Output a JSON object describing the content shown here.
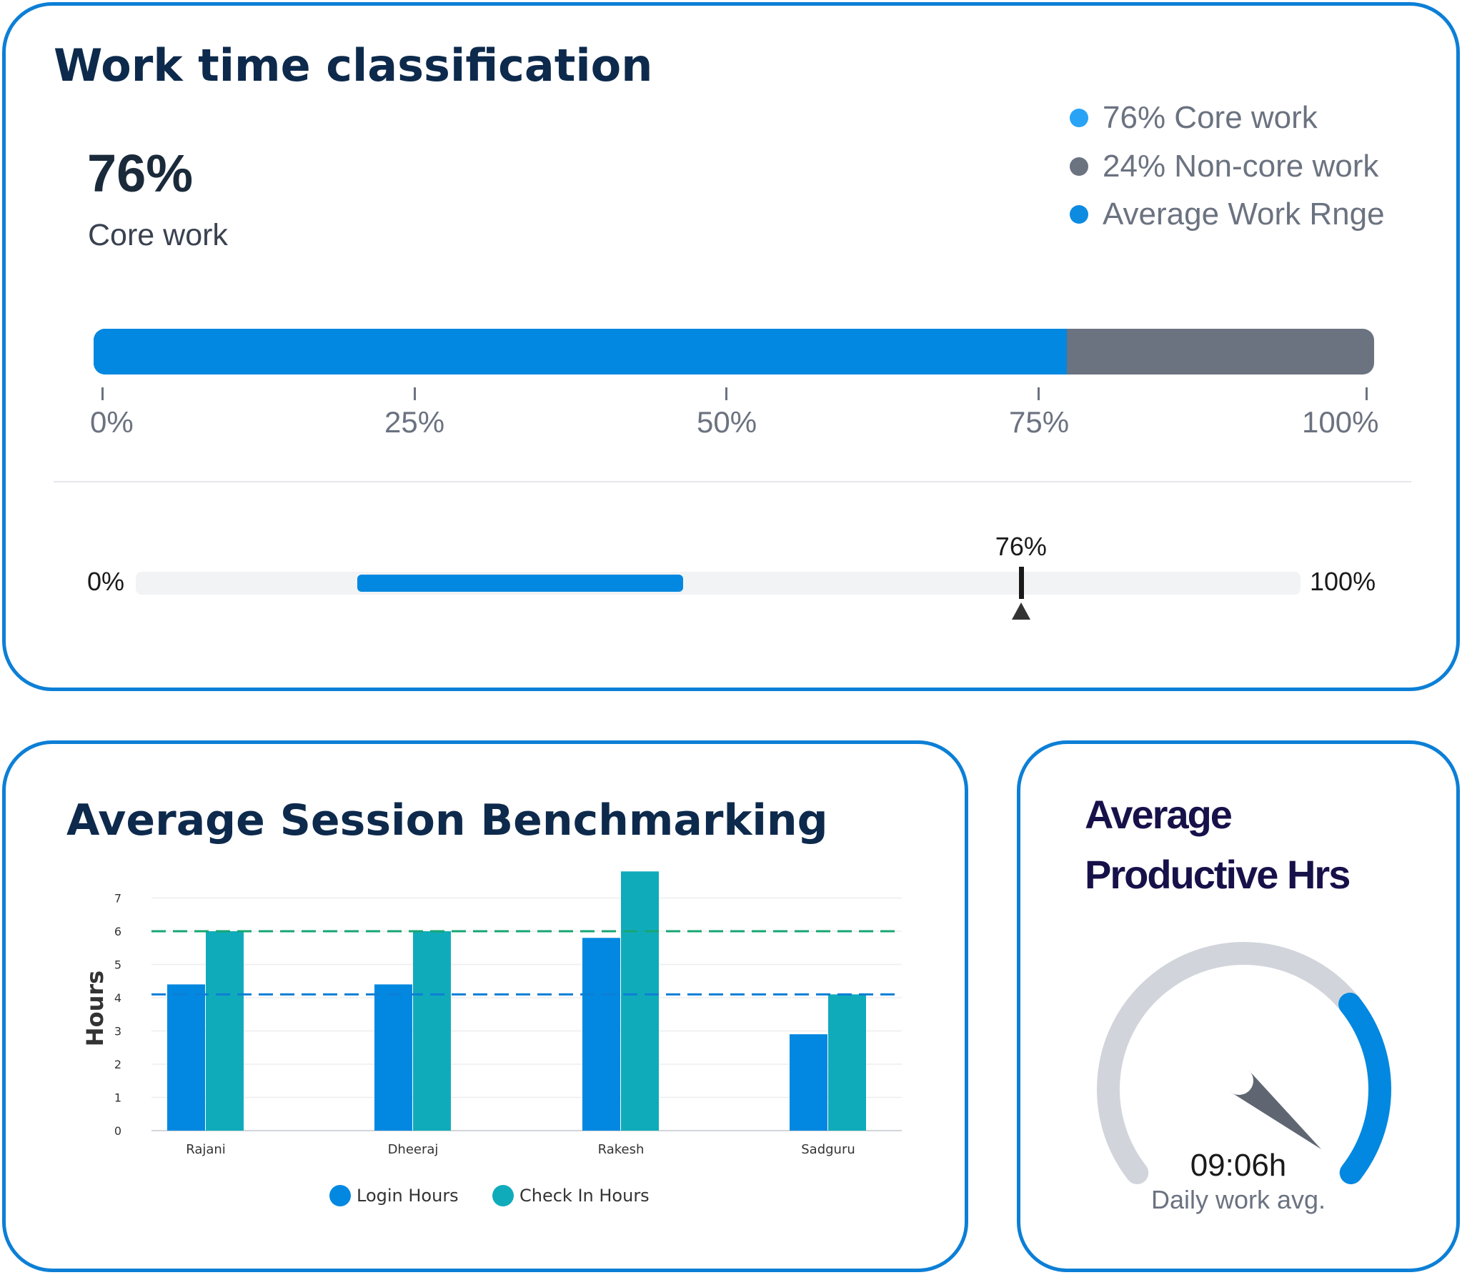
{
  "work_time": {
    "title": "Work time classification",
    "big_value": "76%",
    "big_label": "Core work",
    "legend": [
      {
        "label": "76% Core work",
        "color": "#29a3f5"
      },
      {
        "label": "24% Non-core work",
        "color": "#6b7280"
      },
      {
        "label": "Average Work Rnge",
        "color": "#0c8be0"
      }
    ],
    "bar": {
      "core_percent": 76,
      "core_color": "#0288e0",
      "noncore_color": "#6b7280"
    },
    "scale_labels": [
      "0%",
      "25%",
      "50%",
      "75%",
      "100%"
    ],
    "range": {
      "min_label": "0%",
      "max_label": "100%",
      "avg_start_percent": 19,
      "avg_end_percent": 47,
      "marker_percent": 76,
      "marker_label": "76%"
    }
  },
  "benchmark": {
    "title": "Average Session Benchmarking",
    "legend": [
      {
        "label": "Login Hours",
        "color": "#0288e0"
      },
      {
        "label": "Check In Hours",
        "color": "#10abbb"
      }
    ]
  },
  "productive": {
    "title_line1": "Average",
    "title_line2": "Productive Hrs",
    "value": "09:06h",
    "caption": "Daily work avg.",
    "gauge_fraction": 0.3,
    "track_color": "#d1d5db",
    "fill_color": "#0288e0",
    "needle_color": "#5f6672"
  },
  "chart_data": [
    {
      "type": "bar",
      "title": "Work time classification",
      "categories": [
        "Core work",
        "Non-core work"
      ],
      "values": [
        76,
        24
      ],
      "ylim": [
        0,
        100
      ]
    },
    {
      "type": "bar",
      "title": "Average Session Benchmarking",
      "xlabel": "",
      "ylabel": "Hours",
      "categories": [
        "Rajani",
        "Dheeraj",
        "Rakesh",
        "Sadguru"
      ],
      "series": [
        {
          "name": "Login Hours",
          "values": [
            4.4,
            4.4,
            5.8,
            2.9
          ],
          "color": "#0288e0"
        },
        {
          "name": "Check In Hours",
          "values": [
            6.0,
            6.0,
            7.8,
            4.1
          ],
          "color": "#10abbb"
        }
      ],
      "yticks": [
        0,
        1,
        2,
        3,
        4,
        5,
        6,
        7
      ],
      "ylim": [
        0,
        8
      ],
      "reference_lines": [
        {
          "value": 6.0,
          "color": "#17a673",
          "style": "dashed"
        },
        {
          "value": 4.1,
          "color": "#0c7fd6",
          "style": "dashed"
        }
      ],
      "grid": true,
      "legend": "bottom"
    }
  ]
}
